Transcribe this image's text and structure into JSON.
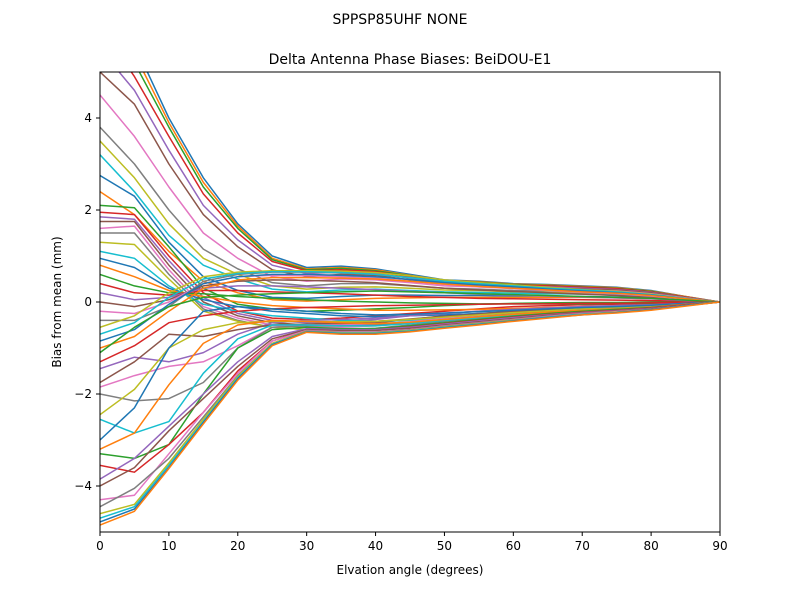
{
  "suptitle": "SPPSP85UHF      NONE",
  "chart_data": {
    "type": "line",
    "title": "Delta Antenna Phase Biases: BeiDOU-E1",
    "xlabel": "Elvation angle (degrees)",
    "ylabel": "Bias from mean (mm)",
    "xlim": [
      0,
      90
    ],
    "ylim": [
      -5,
      5
    ],
    "xticks": [
      0,
      10,
      20,
      30,
      40,
      50,
      60,
      70,
      80,
      90
    ],
    "yticks": [
      -4,
      -2,
      0,
      2,
      4
    ],
    "grid": false,
    "legend": "none",
    "x": [
      0,
      5,
      10,
      15,
      20,
      25,
      30,
      35,
      40,
      45,
      50,
      55,
      60,
      65,
      70,
      75,
      80,
      85,
      90
    ],
    "colors": [
      "#1f77b4",
      "#ff7f0e",
      "#2ca02c",
      "#d62728",
      "#9467bd",
      "#8c564b",
      "#e377c2",
      "#7f7f7f",
      "#bcbd22",
      "#17becf"
    ],
    "series": [
      {
        "values": [
          6.8,
          5.6,
          4.0,
          2.7,
          1.7,
          1.0,
          0.75,
          0.78,
          0.72,
          0.6,
          0.48,
          0.45,
          0.4,
          0.38,
          0.35,
          0.32,
          0.25,
          0.12,
          0
        ]
      },
      {
        "values": [
          6.6,
          5.4,
          3.9,
          2.6,
          1.65,
          0.95,
          0.72,
          0.75,
          0.7,
          0.58,
          0.47,
          0.44,
          0.39,
          0.37,
          0.34,
          0.31,
          0.24,
          0.12,
          0
        ]
      },
      {
        "values": [
          6.4,
          5.2,
          3.8,
          2.5,
          1.6,
          0.92,
          0.7,
          0.73,
          0.68,
          0.57,
          0.46,
          0.43,
          0.38,
          0.36,
          0.33,
          0.3,
          0.23,
          0.11,
          0
        ]
      },
      {
        "values": [
          6.0,
          4.9,
          3.6,
          2.35,
          1.5,
          0.88,
          0.68,
          0.7,
          0.66,
          0.55,
          0.45,
          0.42,
          0.37,
          0.35,
          0.32,
          0.29,
          0.22,
          0.11,
          0
        ]
      },
      {
        "values": [
          5.5,
          4.6,
          3.3,
          2.1,
          1.35,
          0.8,
          0.62,
          0.65,
          0.62,
          0.52,
          0.42,
          0.4,
          0.35,
          0.33,
          0.3,
          0.27,
          0.21,
          0.1,
          0
        ]
      },
      {
        "values": [
          5.0,
          4.3,
          3.0,
          1.9,
          1.2,
          0.7,
          0.55,
          0.6,
          0.58,
          0.48,
          0.4,
          0.37,
          0.33,
          0.31,
          0.28,
          0.26,
          0.2,
          0.1,
          0
        ]
      },
      {
        "values": [
          4.5,
          3.6,
          2.5,
          1.5,
          0.95,
          0.55,
          0.45,
          0.5,
          0.48,
          0.42,
          0.35,
          0.33,
          0.3,
          0.28,
          0.26,
          0.24,
          0.18,
          0.09,
          0
        ]
      },
      {
        "values": [
          3.8,
          3.0,
          2.0,
          1.15,
          0.72,
          0.42,
          0.35,
          0.4,
          0.4,
          0.35,
          0.3,
          0.28,
          0.25,
          0.24,
          0.22,
          0.2,
          0.15,
          0.08,
          0
        ]
      },
      {
        "values": [
          3.5,
          2.7,
          1.7,
          0.95,
          0.6,
          0.35,
          0.28,
          0.32,
          0.33,
          0.3,
          0.26,
          0.25,
          0.22,
          0.21,
          0.2,
          0.18,
          0.14,
          0.07,
          0
        ]
      },
      {
        "values": [
          3.2,
          2.4,
          1.45,
          0.8,
          0.5,
          0.28,
          0.22,
          0.26,
          0.28,
          0.25,
          0.22,
          0.21,
          0.19,
          0.18,
          0.17,
          0.15,
          0.12,
          0.06,
          0
        ]
      },
      {
        "values": [
          2.75,
          2.3,
          1.3,
          0.55,
          0.25,
          0.1,
          0.08,
          0.12,
          0.15,
          0.15,
          0.14,
          0.14,
          0.13,
          0.13,
          0.12,
          0.11,
          0.09,
          0.05,
          0
        ]
      },
      {
        "values": [
          2.4,
          1.9,
          1.1,
          0.45,
          0.2,
          0.05,
          0.02,
          0.05,
          0.08,
          0.09,
          0.1,
          0.1,
          0.1,
          0.1,
          0.1,
          0.09,
          0.07,
          0.04,
          0
        ]
      },
      {
        "values": [
          2.1,
          2.05,
          1.2,
          0.3,
          -0.05,
          -0.15,
          -0.2,
          -0.18,
          -0.15,
          -0.12,
          -0.08,
          -0.05,
          -0.03,
          -0.02,
          -0.01,
          -0.01,
          0,
          0,
          0
        ]
      },
      {
        "values": [
          1.95,
          1.9,
          1.0,
          0.2,
          -0.2,
          -0.35,
          -0.38,
          -0.35,
          -0.3,
          -0.25,
          -0.2,
          -0.15,
          -0.1,
          -0.08,
          -0.06,
          -0.05,
          -0.04,
          -0.02,
          0
        ]
      },
      {
        "values": [
          1.85,
          1.8,
          0.9,
          0.1,
          -0.25,
          -0.4,
          -0.45,
          -0.42,
          -0.38,
          -0.3,
          -0.25,
          -0.2,
          -0.15,
          -0.12,
          -0.1,
          -0.08,
          -0.06,
          -0.03,
          0
        ]
      },
      {
        "values": [
          1.75,
          1.75,
          0.8,
          0.0,
          -0.3,
          -0.45,
          -0.5,
          -0.48,
          -0.45,
          -0.38,
          -0.3,
          -0.25,
          -0.2,
          -0.16,
          -0.13,
          -0.11,
          -0.08,
          -0.04,
          0
        ]
      },
      {
        "values": [
          1.6,
          1.65,
          0.7,
          -0.1,
          -0.35,
          -0.5,
          -0.55,
          -0.55,
          -0.52,
          -0.45,
          -0.38,
          -0.32,
          -0.27,
          -0.22,
          -0.18,
          -0.15,
          -0.11,
          -0.05,
          0
        ]
      },
      {
        "values": [
          1.5,
          1.5,
          0.6,
          -0.15,
          -0.4,
          -0.55,
          -0.6,
          -0.6,
          -0.57,
          -0.5,
          -0.42,
          -0.36,
          -0.3,
          -0.25,
          -0.2,
          -0.17,
          -0.13,
          -0.06,
          0
        ]
      },
      {
        "values": [
          1.3,
          1.25,
          0.5,
          -0.2,
          -0.42,
          -0.55,
          -0.6,
          -0.62,
          -0.6,
          -0.55,
          -0.47,
          -0.4,
          -0.33,
          -0.27,
          -0.22,
          -0.18,
          -0.14,
          -0.07,
          0
        ]
      },
      {
        "values": [
          1.1,
          0.95,
          0.35,
          -0.05,
          -0.2,
          -0.3,
          -0.35,
          -0.4,
          -0.42,
          -0.4,
          -0.36,
          -0.32,
          -0.28,
          -0.24,
          -0.2,
          -0.17,
          -0.13,
          -0.06,
          0
        ]
      },
      {
        "values": [
          0.95,
          0.75,
          0.3,
          0.05,
          -0.1,
          -0.2,
          -0.25,
          -0.3,
          -0.32,
          -0.3,
          -0.28,
          -0.25,
          -0.22,
          -0.19,
          -0.16,
          -0.14,
          -0.11,
          -0.05,
          0
        ]
      },
      {
        "values": [
          0.8,
          0.55,
          0.25,
          0.12,
          0.0,
          -0.08,
          -0.12,
          -0.15,
          -0.18,
          -0.18,
          -0.17,
          -0.16,
          -0.14,
          -0.12,
          -0.1,
          -0.09,
          -0.07,
          -0.03,
          0
        ]
      },
      {
        "values": [
          0.6,
          0.35,
          0.2,
          0.18,
          0.12,
          0.08,
          0.05,
          0.02,
          0.0,
          -0.02,
          -0.03,
          -0.04,
          -0.04,
          -0.04,
          -0.04,
          -0.03,
          -0.03,
          -0.01,
          0
        ]
      },
      {
        "values": [
          0.4,
          0.2,
          0.15,
          0.25,
          0.25,
          0.22,
          0.2,
          0.18,
          0.15,
          0.12,
          0.1,
          0.08,
          0.07,
          0.06,
          0.05,
          0.04,
          0.03,
          0.02,
          0
        ]
      },
      {
        "values": [
          0.2,
          0.05,
          0.1,
          0.3,
          0.35,
          0.35,
          0.33,
          0.3,
          0.27,
          0.23,
          0.2,
          0.17,
          0.15,
          0.13,
          0.11,
          0.09,
          0.07,
          0.03,
          0
        ]
      },
      {
        "values": [
          0.0,
          -0.1,
          0.05,
          0.35,
          0.45,
          0.48,
          0.47,
          0.45,
          0.42,
          0.36,
          0.3,
          0.26,
          0.23,
          0.2,
          0.17,
          0.14,
          0.1,
          0.05,
          0
        ]
      },
      {
        "values": [
          -0.2,
          -0.25,
          0.0,
          0.4,
          0.55,
          0.58,
          0.57,
          0.55,
          0.52,
          0.45,
          0.38,
          0.33,
          0.29,
          0.25,
          0.21,
          0.18,
          0.13,
          0.06,
          0
        ]
      },
      {
        "values": [
          -0.4,
          -0.4,
          -0.1,
          0.45,
          0.6,
          0.65,
          0.65,
          0.63,
          0.6,
          0.53,
          0.45,
          0.39,
          0.34,
          0.29,
          0.25,
          0.21,
          0.15,
          0.07,
          0
        ]
      },
      {
        "values": [
          -0.55,
          -0.3,
          0.2,
          0.55,
          0.65,
          0.68,
          0.68,
          0.67,
          0.64,
          0.57,
          0.48,
          0.42,
          0.37,
          0.32,
          0.27,
          0.23,
          0.17,
          0.08,
          0
        ]
      },
      {
        "values": [
          -0.7,
          -0.45,
          0.1,
          0.5,
          0.62,
          0.66,
          0.66,
          0.64,
          0.6,
          0.53,
          0.45,
          0.4,
          0.35,
          0.3,
          0.26,
          0.22,
          0.16,
          0.08,
          0
        ]
      },
      {
        "values": [
          -0.85,
          -0.6,
          -0.05,
          0.4,
          0.55,
          0.6,
          0.6,
          0.58,
          0.55,
          0.49,
          0.42,
          0.37,
          0.33,
          0.28,
          0.24,
          0.2,
          0.15,
          0.07,
          0
        ]
      },
      {
        "values": [
          -1.0,
          -0.75,
          -0.2,
          0.3,
          0.48,
          0.53,
          0.53,
          0.52,
          0.5,
          0.45,
          0.39,
          0.34,
          0.3,
          0.26,
          0.22,
          0.19,
          0.14,
          0.07,
          0
        ]
      },
      {
        "values": [
          -1.1,
          -0.55,
          -0.1,
          0.1,
          0.15,
          0.18,
          0.2,
          0.22,
          0.24,
          0.22,
          0.2,
          0.18,
          0.16,
          0.14,
          0.12,
          0.1,
          0.08,
          0.04,
          0
        ]
      },
      {
        "values": [
          -1.3,
          -0.95,
          -0.45,
          -0.3,
          -0.2,
          -0.15,
          -0.12,
          -0.1,
          -0.08,
          -0.07,
          -0.06,
          -0.05,
          -0.04,
          -0.04,
          -0.03,
          -0.03,
          -0.02,
          -0.01,
          0
        ]
      },
      {
        "values": [
          -1.45,
          -1.2,
          -1.3,
          -1.1,
          -0.7,
          -0.45,
          -0.4,
          -0.38,
          -0.35,
          -0.3,
          -0.25,
          -0.2,
          -0.16,
          -0.13,
          -0.1,
          -0.08,
          -0.06,
          -0.03,
          0
        ]
      },
      {
        "values": [
          -1.75,
          -1.3,
          -0.7,
          -0.75,
          -0.6,
          -0.5,
          -0.48,
          -0.45,
          -0.42,
          -0.37,
          -0.31,
          -0.26,
          -0.21,
          -0.17,
          -0.14,
          -0.11,
          -0.08,
          -0.04,
          0
        ]
      },
      {
        "values": [
          -1.85,
          -1.6,
          -1.4,
          -1.3,
          -0.95,
          -0.55,
          -0.5,
          -0.5,
          -0.48,
          -0.43,
          -0.36,
          -0.3,
          -0.25,
          -0.2,
          -0.16,
          -0.13,
          -0.09,
          -0.04,
          0
        ]
      },
      {
        "values": [
          -2.0,
          -2.15,
          -2.1,
          -1.75,
          -1.0,
          -0.55,
          -0.52,
          -0.52,
          -0.5,
          -0.45,
          -0.38,
          -0.32,
          -0.26,
          -0.21,
          -0.17,
          -0.14,
          -0.1,
          -0.05,
          0
        ]
      },
      {
        "values": [
          -2.45,
          -1.9,
          -1.0,
          -0.6,
          -0.45,
          -0.42,
          -0.42,
          -0.43,
          -0.42,
          -0.38,
          -0.33,
          -0.28,
          -0.23,
          -0.19,
          -0.15,
          -0.12,
          -0.09,
          -0.04,
          0
        ]
      },
      {
        "values": [
          -2.55,
          -2.85,
          -2.6,
          -1.55,
          -0.8,
          -0.5,
          -0.5,
          -0.52,
          -0.52,
          -0.47,
          -0.4,
          -0.34,
          -0.28,
          -0.23,
          -0.18,
          -0.15,
          -0.11,
          -0.05,
          0
        ]
      },
      {
        "values": [
          -3.0,
          -2.3,
          -1.0,
          -0.2,
          -0.1,
          -0.15,
          -0.2,
          -0.25,
          -0.28,
          -0.27,
          -0.24,
          -0.21,
          -0.18,
          -0.15,
          -0.12,
          -0.1,
          -0.07,
          -0.03,
          0
        ]
      },
      {
        "values": [
          -3.2,
          -2.85,
          -1.8,
          -0.9,
          -0.5,
          -0.4,
          -0.42,
          -0.45,
          -0.47,
          -0.44,
          -0.38,
          -0.32,
          -0.27,
          -0.22,
          -0.18,
          -0.15,
          -0.11,
          -0.05,
          0
        ]
      },
      {
        "values": [
          -3.3,
          -3.4,
          -3.1,
          -2.0,
          -1.0,
          -0.6,
          -0.55,
          -0.58,
          -0.58,
          -0.52,
          -0.45,
          -0.38,
          -0.31,
          -0.25,
          -0.2,
          -0.16,
          -0.12,
          -0.06,
          0
        ]
      },
      {
        "values": [
          -3.55,
          -3.7,
          -3.1,
          -2.4,
          -1.5,
          -0.85,
          -0.6,
          -0.62,
          -0.6,
          -0.54,
          -0.47,
          -0.4,
          -0.33,
          -0.27,
          -0.22,
          -0.18,
          -0.13,
          -0.06,
          0
        ]
      },
      {
        "values": [
          -3.85,
          -3.4,
          -2.7,
          -2.0,
          -1.3,
          -0.75,
          -0.58,
          -0.6,
          -0.6,
          -0.55,
          -0.48,
          -0.41,
          -0.34,
          -0.28,
          -0.23,
          -0.19,
          -0.14,
          -0.07,
          0
        ]
      },
      {
        "values": [
          -4.0,
          -3.6,
          -2.8,
          -2.1,
          -1.4,
          -0.8,
          -0.6,
          -0.62,
          -0.62,
          -0.57,
          -0.5,
          -0.43,
          -0.36,
          -0.29,
          -0.24,
          -0.2,
          -0.15,
          -0.07,
          0
        ]
      },
      {
        "values": [
          -4.3,
          -4.2,
          -3.3,
          -2.4,
          -1.55,
          -0.85,
          -0.62,
          -0.65,
          -0.65,
          -0.6,
          -0.52,
          -0.45,
          -0.38,
          -0.31,
          -0.25,
          -0.21,
          -0.16,
          -0.08,
          0
        ]
      },
      {
        "values": [
          -4.45,
          -4.05,
          -3.4,
          -2.5,
          -1.6,
          -0.9,
          -0.63,
          -0.66,
          -0.66,
          -0.61,
          -0.53,
          -0.46,
          -0.39,
          -0.32,
          -0.26,
          -0.22,
          -0.16,
          -0.08,
          0
        ]
      },
      {
        "values": [
          -4.6,
          -4.4,
          -3.5,
          -2.55,
          -1.62,
          -0.9,
          -0.64,
          -0.67,
          -0.67,
          -0.62,
          -0.54,
          -0.47,
          -0.4,
          -0.33,
          -0.27,
          -0.22,
          -0.17,
          -0.08,
          0
        ]
      },
      {
        "values": [
          -4.7,
          -4.45,
          -3.55,
          -2.6,
          -1.65,
          -0.92,
          -0.65,
          -0.68,
          -0.68,
          -0.63,
          -0.55,
          -0.48,
          -0.41,
          -0.33,
          -0.27,
          -0.23,
          -0.17,
          -0.08,
          0
        ]
      },
      {
        "values": [
          -4.78,
          -4.5,
          -3.6,
          -2.62,
          -1.67,
          -0.93,
          -0.65,
          -0.69,
          -0.69,
          -0.64,
          -0.56,
          -0.49,
          -0.41,
          -0.34,
          -0.28,
          -0.23,
          -0.17,
          -0.08,
          0
        ]
      },
      {
        "values": [
          -4.85,
          -4.55,
          -3.62,
          -2.65,
          -1.7,
          -0.95,
          -0.66,
          -0.7,
          -0.7,
          -0.65,
          -0.57,
          -0.5,
          -0.42,
          -0.35,
          -0.28,
          -0.24,
          -0.18,
          -0.09,
          0
        ]
      }
    ]
  }
}
